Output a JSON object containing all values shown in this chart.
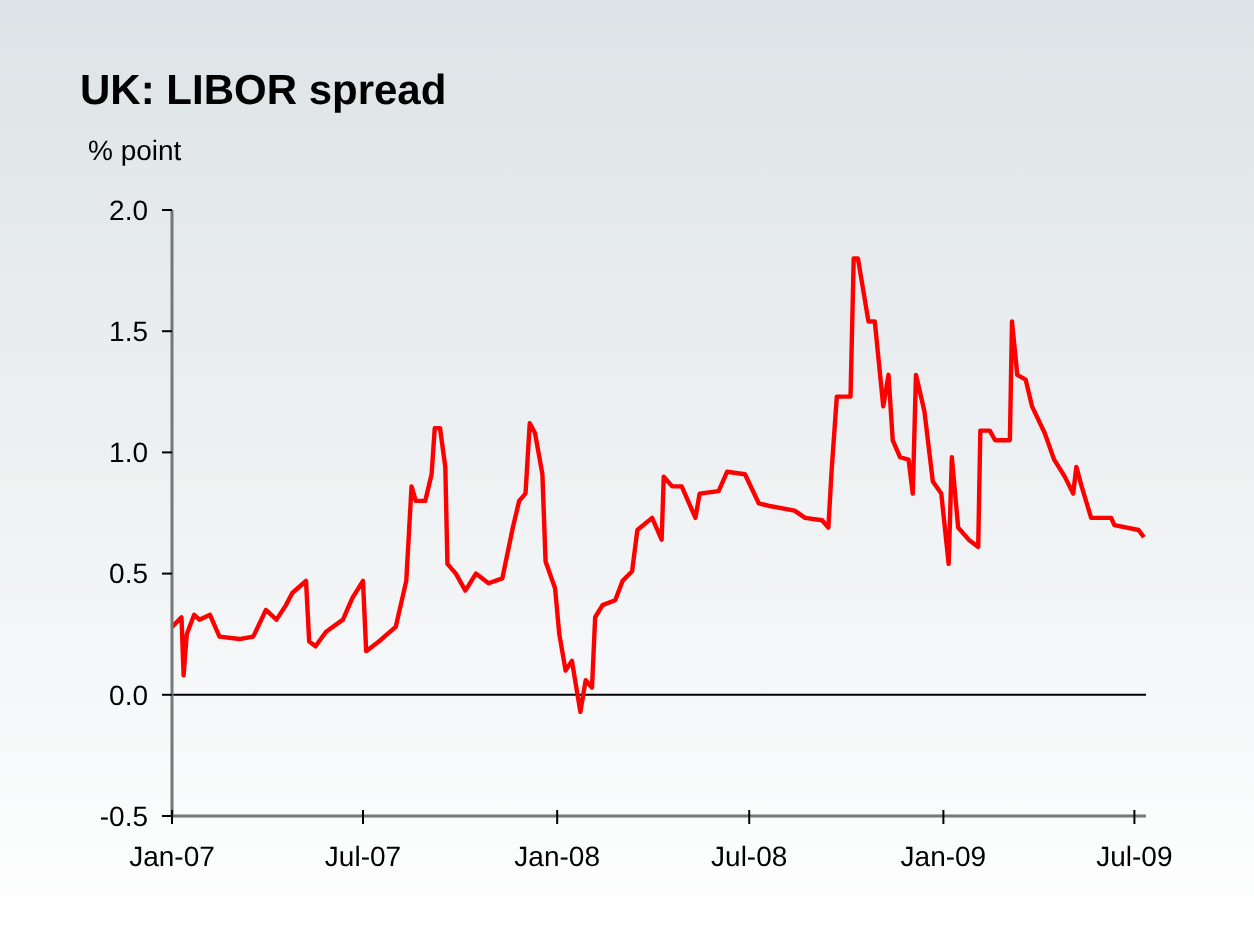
{
  "chart_data": {
    "type": "line",
    "title": "UK: LIBOR spread",
    "ylabel": "% point",
    "xlim": [
      "2007-01-01",
      "2009-07-12"
    ],
    "xticks": [
      {
        "value": "2007-01-01",
        "label": "Jan-07"
      },
      {
        "value": "2007-07-01",
        "label": "Jul-07"
      },
      {
        "value": "2008-01-01",
        "label": "Jan-08"
      },
      {
        "value": "2008-07-01",
        "label": "Jul-08"
      },
      {
        "value": "2009-01-01",
        "label": "Jan-09"
      },
      {
        "value": "2009-07-01",
        "label": "Jul-09"
      }
    ],
    "ylim": [
      -0.5,
      2
    ],
    "yticks": [
      -0.5,
      {
        "value": 0,
        "label": "0.0"
      },
      0.5,
      {
        "value": 1,
        "label": "1.0"
      },
      1.5,
      {
        "value": 2,
        "label": "2.0"
      }
    ],
    "grid": false,
    "line_style": "solid",
    "ref_lines": [
      {
        "axis": "y",
        "value": 0,
        "color": "#000000"
      }
    ],
    "series": [
      {
        "color": "#ff0000",
        "x": [
          "2007-01-01",
          "2007-01-10",
          "2007-01-12",
          "2007-01-15",
          "2007-01-22",
          "2007-01-27",
          "2007-02-06",
          "2007-02-15",
          "2007-03-06",
          "2007-03-19",
          "2007-03-31",
          "2007-04-10",
          "2007-04-19",
          "2007-04-25",
          "2007-05-08",
          "2007-05-11",
          "2007-05-17",
          "2007-05-27",
          "2007-06-12",
          "2007-06-21",
          "2007-07-01",
          "2007-07-04",
          "2007-07-16",
          "2007-08-01",
          "2007-08-11",
          "2007-08-16",
          "2007-08-20",
          "2007-08-29",
          "2007-09-04",
          "2007-09-07",
          "2007-09-12",
          "2007-09-17",
          "2007-09-19",
          "2007-09-27",
          "2007-10-06",
          "2007-10-16",
          "2007-10-28",
          "2007-11-10",
          "2007-11-20",
          "2007-11-26",
          "2007-12-02",
          "2007-12-06",
          "2007-12-11",
          "2007-12-18",
          "2007-12-21",
          "2007-12-30",
          "2008-01-03",
          "2008-01-09",
          "2008-01-15",
          "2008-01-18",
          "2008-01-23",
          "2008-01-28",
          "2008-02-03",
          "2008-02-06",
          "2008-02-13",
          "2008-02-25",
          "2008-03-03",
          "2008-03-12",
          "2008-03-17",
          "2008-03-31",
          "2008-04-09",
          "2008-04-11",
          "2008-04-19",
          "2008-04-28",
          "2008-05-11",
          "2008-05-15",
          "2008-06-02",
          "2008-06-10",
          "2008-06-27",
          "2008-07-10",
          "2008-07-19",
          "2008-08-13",
          "2008-08-23",
          "2008-09-08",
          "2008-09-14",
          "2008-09-17",
          "2008-09-22",
          "2008-10-05",
          "2008-10-08",
          "2008-10-12",
          "2008-10-22",
          "2008-10-28",
          "2008-11-05",
          "2008-11-10",
          "2008-11-14",
          "2008-11-21",
          "2008-11-29",
          "2008-12-03",
          "2008-12-06",
          "2008-12-14",
          "2008-12-22",
          "2008-12-30",
          "2009-01-06",
          "2009-01-09",
          "2009-01-15",
          "2009-01-25",
          "2009-02-03",
          "2009-02-05",
          "2009-02-14",
          "2009-02-19",
          "2009-03-05",
          "2009-03-07",
          "2009-03-12",
          "2009-03-20",
          "2009-03-26",
          "2009-04-07",
          "2009-04-16",
          "2009-04-26",
          "2009-05-04",
          "2009-05-07",
          "2009-05-12",
          "2009-05-21",
          "2009-06-09",
          "2009-06-12",
          "2009-07-05",
          "2009-07-10"
        ],
        "values": [
          0.28,
          0.32,
          0.08,
          0.25,
          0.33,
          0.31,
          0.33,
          0.24,
          0.23,
          0.24,
          0.35,
          0.31,
          0.37,
          0.42,
          0.47,
          0.22,
          0.2,
          0.26,
          0.31,
          0.4,
          0.47,
          0.18,
          0.22,
          0.28,
          0.47,
          0.86,
          0.8,
          0.8,
          0.91,
          1.1,
          1.1,
          0.94,
          0.54,
          0.5,
          0.43,
          0.5,
          0.46,
          0.48,
          0.69,
          0.8,
          0.83,
          1.12,
          1.08,
          0.91,
          0.55,
          0.44,
          0.25,
          0.1,
          0.14,
          0.06,
          -0.07,
          0.06,
          0.03,
          0.32,
          0.37,
          0.39,
          0.47,
          0.51,
          0.68,
          0.73,
          0.64,
          0.9,
          0.86,
          0.86,
          0.73,
          0.83,
          0.84,
          0.92,
          0.91,
          0.79,
          0.78,
          0.76,
          0.73,
          0.72,
          0.69,
          0.92,
          1.23,
          1.23,
          1.8,
          1.8,
          1.54,
          1.54,
          1.19,
          1.32,
          1.05,
          0.98,
          0.97,
          0.83,
          1.32,
          1.17,
          0.88,
          0.83,
          0.54,
          0.98,
          0.69,
          0.64,
          0.61,
          1.09,
          1.09,
          1.05,
          1.05,
          1.54,
          1.32,
          1.3,
          1.19,
          1.08,
          0.97,
          0.9,
          0.83,
          0.94,
          0.86,
          0.73,
          0.73,
          0.7,
          0.68,
          0.65
        ]
      }
    ]
  }
}
